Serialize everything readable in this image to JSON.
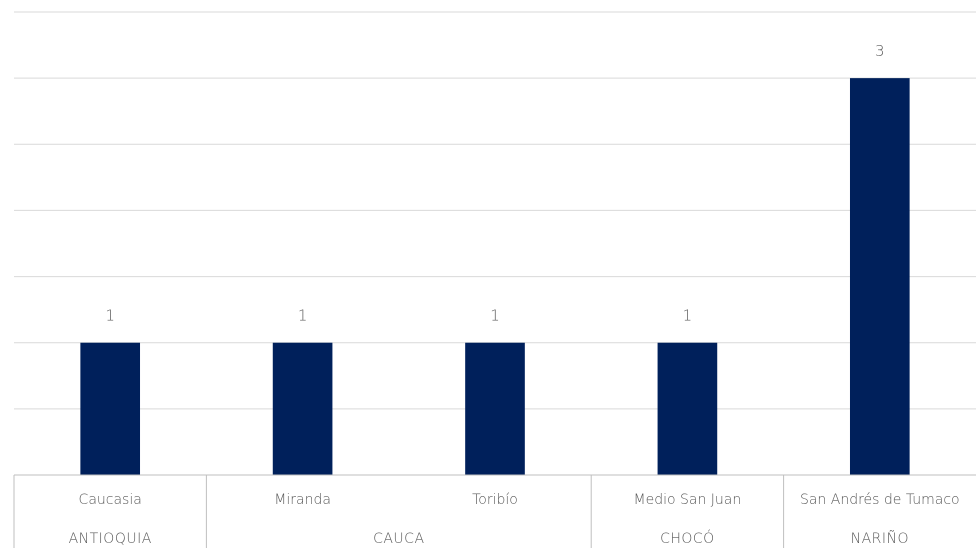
{
  "chart_data": {
    "type": "bar",
    "title": "",
    "xlabel": "",
    "ylabel": "",
    "categories": [
      "Caucasia",
      "Miranda",
      "Toribío",
      "Medio San Juan",
      "San Andrés de Tumaco"
    ],
    "groups": [
      {
        "label": "ANTIOQUIA",
        "categories": [
          "Caucasia"
        ]
      },
      {
        "label": "CAUCA",
        "categories": [
          "Miranda",
          "Toribío"
        ]
      },
      {
        "label": "CHOCÓ",
        "categories": [
          "Medio San Juan"
        ]
      },
      {
        "label": "NARIÑO",
        "categories": [
          "San Andrés de Tumaco"
        ]
      }
    ],
    "values": [
      1,
      1,
      1,
      1,
      3
    ],
    "data_labels": [
      "1",
      "1",
      "1",
      "1",
      "3"
    ],
    "ylim": [
      0,
      3.5
    ],
    "ystep": 0.5,
    "grid": true,
    "legend": "none",
    "colors": {
      "bar": "#00205B",
      "grid": "#D9D9D9",
      "text": "#595959",
      "axis": "#BFBFBF"
    }
  }
}
